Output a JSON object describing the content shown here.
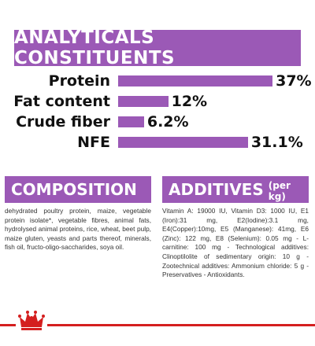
{
  "header": {
    "title": "ANALYTICALS CONSTITUENTS"
  },
  "analytics": [
    {
      "label": "Protein",
      "value": "37%",
      "level": 37
    },
    {
      "label": "Fat content",
      "value": "12%",
      "level": 12
    },
    {
      "label": "Crude fiber",
      "value": "6.2%",
      "level": 6.2
    },
    {
      "label": "NFE",
      "value": "31.1%",
      "level": 31.1
    }
  ],
  "composition": {
    "title": "COMPOSITION",
    "text": "dehydrated poultry protein, maize, vegetable protein isolate*, vegetable fibres, animal fats, hydrolysed animal proteins, rice, wheat, beet pulp, maize gluten, yeasts and parts thereof, minerals, fish oil, fructo-oligo-saccharides, soya oil."
  },
  "additives": {
    "title": "ADDITIVES",
    "subtitle": "(per kg)",
    "text": "Vitamin A: 19000 IU, Vitamin D3: 1000 IU, E1 (Iron):31 mg, E2(Iodine):3.1 mg, E4(Copper):10mg, E5 (Manganese): 41mg, E6 (Zinc): 122 mg, E8 (Selenium): 0.05 mg - L- carnitine: 100 mg - Technological additives: Clinoptilolite of sedimentary origin: 10 g -Zootechnical additives: Ammonium chloride: 5 g - Preservatives - Antioxidants."
  },
  "colors": {
    "accent": "#9b59b6",
    "brand_red": "#d41f1f"
  },
  "logo": {
    "icon": "crown-icon"
  }
}
